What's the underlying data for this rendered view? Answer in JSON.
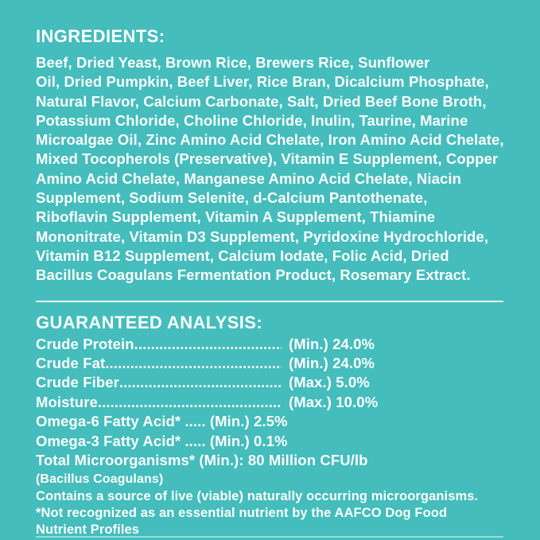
{
  "theme": {
    "background_color": "#44BDBC",
    "text_color": "#FFFFFF",
    "divider_color": "#FFFFFF"
  },
  "ingredients": {
    "heading": "INGREDIENTS:",
    "lines": [
      "Beef, Dried Yeast, Brown Rice, Brewers Rice, Sunflower",
      "Oil, Dried Pumpkin, Beef Liver, Rice Bran, Dicalcium Phosphate,",
      "Natural Flavor, Calcium Carbonate, Salt, Dried Beef Bone Broth,",
      "Potassium Chloride, Choline Chloride, Inulin, Taurine, Marine",
      "Microalgae Oil, Zinc Amino Acid Chelate, Iron Amino Acid Chelate,",
      "Mixed Tocopherols (Preservative), Vitamin E Supplement, Copper",
      "Amino Acid Chelate, Manganese Amino Acid Chelate, Niacin",
      "Supplement, Sodium Selenite, d-Calcium Pantothenate,",
      "Riboflavin Supplement, Vitamin A Supplement, Thiamine",
      "Mononitrate, Vitamin D3 Supplement, Pyridoxine Hydrochloride,",
      "Vitamin B12 Supplement, Calcium Iodate, Folic Acid, Dried",
      "Bacillus Coagulans Fermentation Product, Rosemary Extract."
    ]
  },
  "analysis": {
    "heading": "GUARANTEED ANALYSIS:",
    "rows": [
      {
        "label": "Crude Protein",
        "leader": "................................................................................",
        "value": "(Min.) 24.0%"
      },
      {
        "label": "Crude Fat ",
        "leader": "................................................................................",
        "value": "(Min.) 24.0%"
      },
      {
        "label": "Crude Fiber",
        "leader": "................................................................................",
        "value": "(Max.) 5.0%"
      },
      {
        "label": "Moisture ",
        "leader": "................................................................................",
        "value": "(Max.) 10.0%"
      },
      {
        "label": "Omega-6 Fatty Acid*",
        "leader": " ..... ",
        "value": "(Min.) 2.5%"
      },
      {
        "label": "Omega-3 Fatty Acid*",
        "leader": " ..... ",
        "value": "(Min.) 0.1%"
      },
      {
        "label": "Total Microorganisms*",
        "leader": " ",
        "value": "(Min.): 80 Million CFU/lb"
      }
    ],
    "notes": [
      "(Bacillus Coagulans)",
      "Contains a source of live (viable) naturally occurring microorganisms.",
      "*Not recognized as an essential nutrient by the AAFCO Dog Food Nutrient Profiles"
    ]
  }
}
